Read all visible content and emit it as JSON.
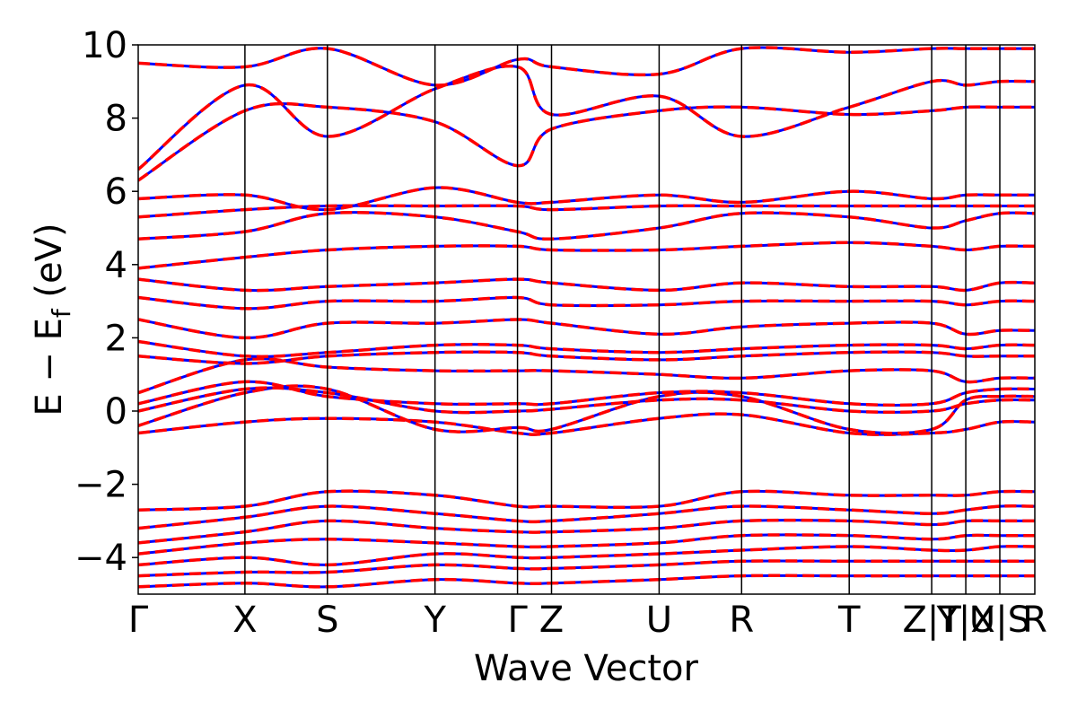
{
  "chart_data": {
    "type": "line",
    "title": "",
    "xlabel": "Wave Vector",
    "ylabel": "E − E",
    "ylabel_subscript": "f",
    "ylabel_unit": "(eV)",
    "ylim": [
      -5,
      10
    ],
    "yticks": [
      -4,
      -2,
      0,
      2,
      4,
      6,
      8,
      10
    ],
    "ytick_labels": [
      "−4",
      "−2",
      "0",
      "2",
      "4",
      "6",
      "8",
      "10"
    ],
    "xlim": [
      0,
      10
    ],
    "kpoints": [
      {
        "label": "Γ",
        "x": 0.0
      },
      {
        "label": "X",
        "x": 1.19
      },
      {
        "label": "S",
        "x": 2.11
      },
      {
        "label": "Y",
        "x": 3.31
      },
      {
        "label": "Γ",
        "x": 4.23
      },
      {
        "label": "Z",
        "x": 4.61
      },
      {
        "label": "U",
        "x": 5.81
      },
      {
        "label": "R",
        "x": 6.73
      },
      {
        "label": "T",
        "x": 7.93
      },
      {
        "label": "Z|T",
        "x": 8.85
      },
      {
        "label": "Y|X",
        "x": 9.23
      },
      {
        "label": "U|S",
        "x": 9.61
      },
      {
        "label": "R",
        "x": 10.0
      }
    ],
    "series_style": [
      {
        "color": "#0000ff",
        "linestyle": "solid"
      },
      {
        "color": "#ff0000",
        "linestyle": "dashed"
      }
    ],
    "series": [
      {
        "values": [
          -0.6,
          -0.3,
          -0.2,
          -0.3,
          -0.6,
          -0.6,
          -0.2,
          -0.1,
          -0.6,
          -0.6,
          -0.5,
          -0.3,
          -0.3
        ]
      },
      {
        "values": [
          -0.4,
          0.5,
          0.6,
          -0.5,
          -0.45,
          -0.5,
          0.4,
          0.4,
          -0.5,
          -0.5,
          0.3,
          0.4,
          0.4
        ]
      },
      {
        "values": [
          0.0,
          0.6,
          0.5,
          0.0,
          0.0,
          0.05,
          0.3,
          0.3,
          0.0,
          0.0,
          0.2,
          0.3,
          0.3
        ]
      },
      {
        "values": [
          0.2,
          0.8,
          0.4,
          0.2,
          0.2,
          0.2,
          0.5,
          0.5,
          0.2,
          0.2,
          0.5,
          0.6,
          0.6
        ]
      },
      {
        "values": [
          0.5,
          1.4,
          1.2,
          1.1,
          1.1,
          1.1,
          1.0,
          0.9,
          1.1,
          1.1,
          0.8,
          0.9,
          0.9
        ]
      },
      {
        "values": [
          1.5,
          1.3,
          1.5,
          1.6,
          1.6,
          1.5,
          1.4,
          1.5,
          1.6,
          1.6,
          1.5,
          1.5,
          1.5
        ]
      },
      {
        "values": [
          1.9,
          1.5,
          1.6,
          1.8,
          1.8,
          1.7,
          1.6,
          1.7,
          1.8,
          1.8,
          1.7,
          1.8,
          1.8
        ]
      },
      {
        "values": [
          2.5,
          2.0,
          2.4,
          2.4,
          2.5,
          2.4,
          2.1,
          2.3,
          2.4,
          2.4,
          2.1,
          2.2,
          2.2
        ]
      },
      {
        "values": [
          3.1,
          2.8,
          3.0,
          3.0,
          3.1,
          2.9,
          2.9,
          3.0,
          3.0,
          3.0,
          2.9,
          3.0,
          3.0
        ]
      },
      {
        "values": [
          3.6,
          3.3,
          3.4,
          3.5,
          3.6,
          3.5,
          3.3,
          3.5,
          3.4,
          3.4,
          3.3,
          3.5,
          3.5
        ]
      },
      {
        "values": [
          3.9,
          4.2,
          4.4,
          4.5,
          4.5,
          4.4,
          4.4,
          4.5,
          4.6,
          4.5,
          4.4,
          4.5,
          4.5
        ]
      },
      {
        "values": [
          4.7,
          4.9,
          5.4,
          5.3,
          4.9,
          4.7,
          5.0,
          5.4,
          5.3,
          5.0,
          5.2,
          5.4,
          5.4
        ]
      },
      {
        "values": [
          5.3,
          5.5,
          5.6,
          5.6,
          5.6,
          5.5,
          5.6,
          5.6,
          5.6,
          5.6,
          5.6,
          5.6,
          5.6
        ]
      },
      {
        "values": [
          5.8,
          5.9,
          5.5,
          6.1,
          5.7,
          5.7,
          5.9,
          5.7,
          6.0,
          5.8,
          5.9,
          5.9,
          5.9
        ]
      },
      {
        "values": [
          6.3,
          8.2,
          8.3,
          7.9,
          6.7,
          7.7,
          8.2,
          8.3,
          8.1,
          8.2,
          8.3,
          8.3,
          8.3
        ]
      },
      {
        "values": [
          6.6,
          8.9,
          7.5,
          8.8,
          9.4,
          8.1,
          8.6,
          7.5,
          8.3,
          9.0,
          8.9,
          9.0,
          9.0
        ]
      },
      {
        "values": [
          9.5,
          9.4,
          9.9,
          8.9,
          9.6,
          9.4,
          9.2,
          9.9,
          9.8,
          9.9,
          9.9,
          9.9,
          9.9
        ]
      },
      {
        "values": [
          -2.7,
          -2.6,
          -2.2,
          -2.3,
          -2.6,
          -2.6,
          -2.6,
          -2.2,
          -2.3,
          -2.3,
          -2.3,
          -2.2,
          -2.2
        ]
      },
      {
        "values": [
          -3.2,
          -2.9,
          -2.6,
          -2.8,
          -3.0,
          -3.0,
          -2.8,
          -2.6,
          -2.7,
          -2.8,
          -2.7,
          -2.6,
          -2.6
        ]
      },
      {
        "values": [
          -3.6,
          -3.3,
          -3.0,
          -3.2,
          -3.3,
          -3.3,
          -3.2,
          -3.0,
          -3.0,
          -3.1,
          -3.0,
          -3.0,
          -3.0
        ]
      },
      {
        "values": [
          -3.9,
          -3.6,
          -3.5,
          -3.6,
          -3.7,
          -3.7,
          -3.6,
          -3.4,
          -3.4,
          -3.5,
          -3.4,
          -3.4,
          -3.4
        ]
      },
      {
        "values": [
          -4.2,
          -4.0,
          -4.2,
          -3.9,
          -4.0,
          -4.0,
          -3.9,
          -3.8,
          -3.7,
          -3.8,
          -3.8,
          -3.7,
          -3.7
        ]
      },
      {
        "values": [
          -4.5,
          -4.4,
          -4.4,
          -4.2,
          -4.3,
          -4.3,
          -4.2,
          -4.1,
          -4.1,
          -4.1,
          -4.1,
          -4.1,
          -4.1
        ]
      },
      {
        "values": [
          -4.8,
          -4.7,
          -4.8,
          -4.6,
          -4.7,
          -4.7,
          -4.6,
          -4.5,
          -4.5,
          -4.5,
          -4.5,
          -4.5,
          -4.5
        ]
      }
    ]
  }
}
